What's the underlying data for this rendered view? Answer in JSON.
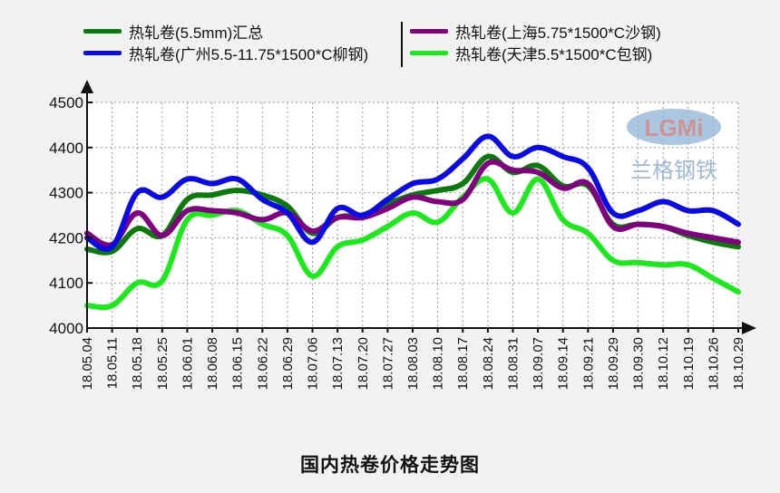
{
  "chart_data": {
    "type": "line",
    "title": "国内热卷价格走势图",
    "xlabel": "",
    "ylabel": "",
    "ylim": [
      4000,
      4500
    ],
    "yticks": [
      4000,
      4100,
      4200,
      4300,
      4400,
      4500
    ],
    "grid": true,
    "legend_position": "top",
    "watermark": {
      "logo": "LGMi",
      "text": "兰格钢铁"
    },
    "categories": [
      "18.05.04",
      "18.05.11",
      "18.05.18",
      "18.05.25",
      "18.06.01",
      "18.06.08",
      "18.06.15",
      "18.06.22",
      "18.06.29",
      "18.07.06",
      "18.07.13",
      "18.07.20",
      "18.07.27",
      "18.08.03",
      "18.08.10",
      "18.08.17",
      "18.08.24",
      "18.08.31",
      "18.09.07",
      "18.09.14",
      "18.09.21",
      "18.09.29",
      "18.09.30",
      "18.10.12",
      "18.10.19",
      "18.10.26",
      "18.10.29"
    ],
    "series": [
      {
        "name": "热轧卷(5.5mm)汇总",
        "color": "#0a7a0a",
        "values": [
          4175,
          4170,
          4220,
          4205,
          4285,
          4295,
          4305,
          4295,
          4270,
          4210,
          4245,
          4250,
          4275,
          4295,
          4305,
          4320,
          4380,
          4345,
          4360,
          4315,
          4315,
          4230,
          4230,
          4225,
          4205,
          4190,
          4180
        ]
      },
      {
        "name": "热轧卷(广州5.5-11.75*1500*C柳钢)",
        "color": "#0a0ae6",
        "values": [
          4200,
          4180,
          4300,
          4290,
          4330,
          4320,
          4330,
          4285,
          4255,
          4190,
          4265,
          4250,
          4285,
          4320,
          4330,
          4375,
          4425,
          4380,
          4400,
          4380,
          4355,
          4255,
          4260,
          4280,
          4260,
          4260,
          4230
        ]
      },
      {
        "name": "热轧卷(上海5.75*1500*C沙钢)",
        "color": "#800080",
        "values": [
          4210,
          4185,
          4255,
          4205,
          4260,
          4260,
          4255,
          4240,
          4255,
          4215,
          4245,
          4245,
          4265,
          4290,
          4280,
          4285,
          4365,
          4350,
          4345,
          4310,
          4320,
          4225,
          4230,
          4225,
          4210,
          4200,
          4190
        ]
      },
      {
        "name": "热轧卷(天津5.5*1500*C包钢)",
        "color": "#1aea1a",
        "values": [
          4050,
          4050,
          4100,
          4105,
          4240,
          4250,
          4260,
          4230,
          4205,
          4115,
          4180,
          4195,
          4225,
          4255,
          4235,
          4290,
          4330,
          4255,
          4330,
          4240,
          4210,
          4150,
          4145,
          4140,
          4140,
          4110,
          4080
        ]
      }
    ]
  },
  "legend": {
    "items": [
      {
        "label": "热轧卷(5.5mm)汇总",
        "color": "#0a7a0a"
      },
      {
        "label": "热轧卷(广州5.5-11.75*1500*C柳钢)",
        "color": "#0a0ae6"
      },
      {
        "label": "热轧卷(上海5.75*1500*C沙钢)",
        "color": "#800080"
      },
      {
        "label": "热轧卷(天津5.5*1500*C包钢)",
        "color": "#1aea1a"
      }
    ]
  },
  "title": "国内热卷价格走势图"
}
